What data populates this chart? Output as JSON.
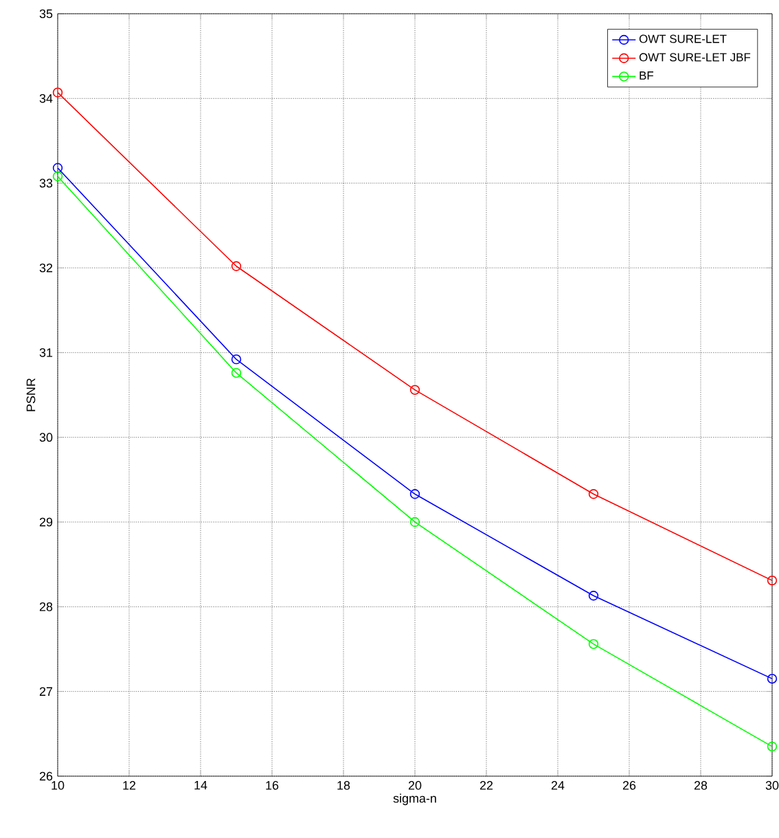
{
  "chart_data": {
    "type": "line",
    "xlabel": "sigma-n",
    "ylabel": "PSNR",
    "x": [
      10,
      15,
      20,
      25,
      30
    ],
    "series": [
      {
        "name": "OWT SURE-LET",
        "color": "#0000ff",
        "values": [
          33.18,
          30.92,
          29.33,
          28.13,
          27.15
        ]
      },
      {
        "name": "OWT SURE-LET JBF",
        "color": "#ff0000",
        "values": [
          34.07,
          32.02,
          30.56,
          29.33,
          28.31
        ]
      },
      {
        "name": "BF",
        "color": "#00ff00",
        "values": [
          33.08,
          30.76,
          29.0,
          27.56,
          26.35
        ]
      }
    ],
    "xlim": [
      10,
      30
    ],
    "ylim": [
      26,
      35
    ],
    "xticks": [
      10,
      12,
      14,
      16,
      18,
      20,
      22,
      24,
      26,
      28,
      30
    ],
    "yticks": [
      26,
      27,
      28,
      29,
      30,
      31,
      32,
      33,
      34,
      35
    ],
    "grid": true,
    "legend": "top right",
    "marker": "circle",
    "line_style": "solid"
  }
}
